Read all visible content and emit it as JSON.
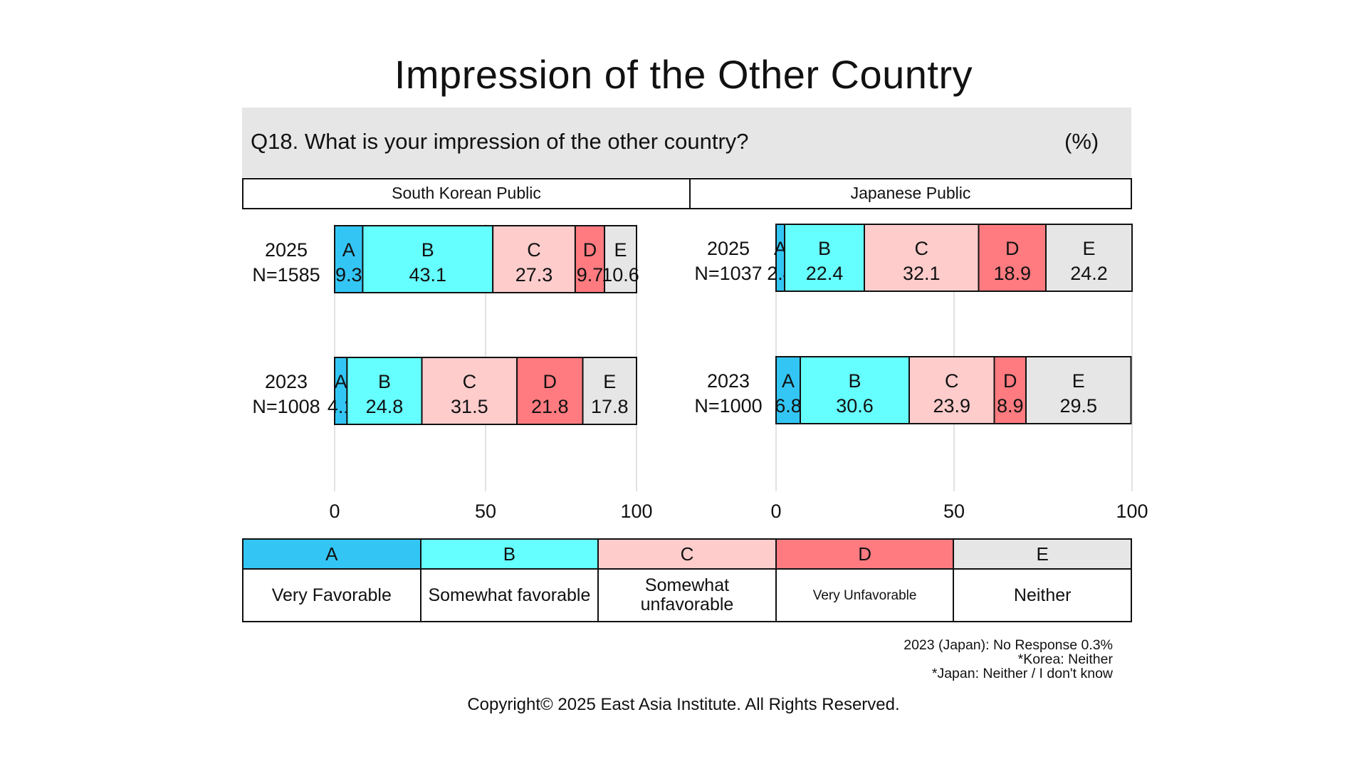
{
  "title": "Impression of the Other Country",
  "question": "Q18. What is your impression of the other country?",
  "unit": "(%)",
  "legend": {
    "codes": [
      "A",
      "B",
      "C",
      "D",
      "E"
    ],
    "labels": [
      "Very Favorable",
      "Somewhat favorable",
      "Somewhat unfavorable",
      "Very Unfavorable",
      "Neither"
    ],
    "colors": [
      "#33c6f5",
      "#66ffff",
      "#ffcccc",
      "#ff7b80",
      "#e6e6e6"
    ]
  },
  "notes": [
    "2023 (Japan): No Response 0.3%",
    "*Korea: Neither",
    "*Japan: Neither / I don't know"
  ],
  "copyright": "Copyright© 2025 East Asia Institute. All Rights Reserved.",
  "chart_data": [
    {
      "type": "bar",
      "orientation": "horizontal",
      "stacked": true,
      "title": "South Korean Public",
      "categories": [
        "2025",
        "2023"
      ],
      "sample_sizes": [
        "N=1585",
        "N=1008"
      ],
      "series": [
        {
          "name": "A",
          "values": [
            9.3,
            4.1
          ]
        },
        {
          "name": "B",
          "values": [
            43.1,
            24.8
          ]
        },
        {
          "name": "C",
          "values": [
            27.3,
            31.5
          ]
        },
        {
          "name": "D",
          "values": [
            9.7,
            21.8
          ]
        },
        {
          "name": "E",
          "values": [
            10.6,
            17.8
          ]
        }
      ],
      "xlim": [
        0,
        100
      ],
      "xticks": [
        0,
        50,
        100
      ],
      "grid": true
    },
    {
      "type": "bar",
      "orientation": "horizontal",
      "stacked": true,
      "title": "Japanese Public",
      "categories": [
        "2025",
        "2023"
      ],
      "sample_sizes": [
        "N=1037",
        "N=1000"
      ],
      "series": [
        {
          "name": "A",
          "values": [
            2.4,
            6.8
          ]
        },
        {
          "name": "B",
          "values": [
            22.4,
            30.6
          ]
        },
        {
          "name": "C",
          "values": [
            32.1,
            23.9
          ]
        },
        {
          "name": "D",
          "values": [
            18.9,
            8.9
          ]
        },
        {
          "name": "E",
          "values": [
            24.2,
            29.5
          ]
        }
      ],
      "xlim": [
        0,
        100
      ],
      "xticks": [
        0,
        50,
        100
      ],
      "grid": true
    }
  ]
}
